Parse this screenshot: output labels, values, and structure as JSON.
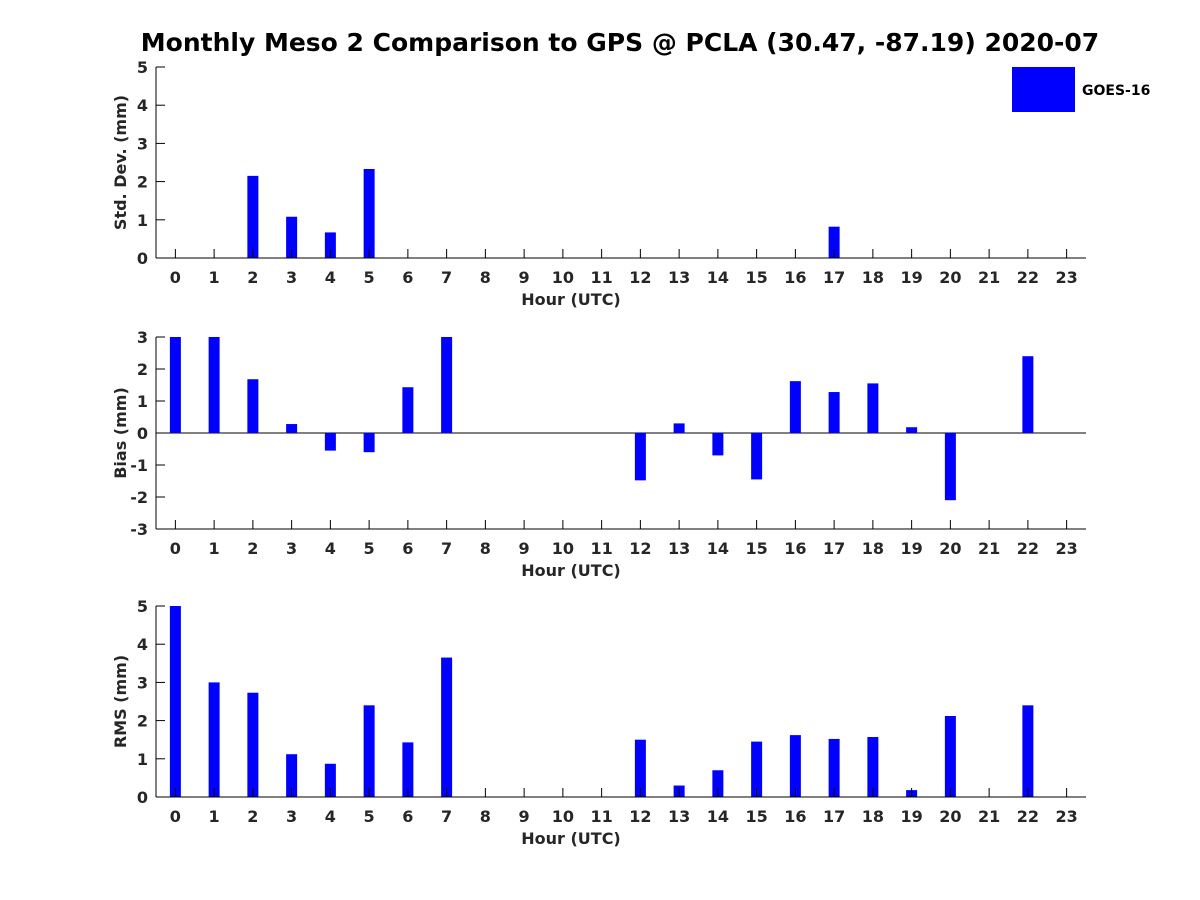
{
  "title": "Monthly Meso 2 Comparison to GPS @ PCLA (30.47, -87.19) 2020-07",
  "legend": {
    "label": "GOES-16",
    "color": "#0000ff",
    "position": "top-right"
  },
  "chart_data": [
    {
      "type": "bar",
      "name": "std-dev",
      "xlabel": "Hour (UTC)",
      "ylabel": "Std. Dev. (mm)",
      "categories": [
        "0",
        "1",
        "2",
        "3",
        "4",
        "5",
        "6",
        "7",
        "8",
        "9",
        "10",
        "11",
        "12",
        "13",
        "14",
        "15",
        "16",
        "17",
        "18",
        "19",
        "20",
        "21",
        "22",
        "23"
      ],
      "xlim": [
        -0.5,
        23.5
      ],
      "ylim": [
        0,
        5
      ],
      "yticks": [
        0,
        1,
        2,
        3,
        4,
        5
      ],
      "series": [
        {
          "name": "GOES-16",
          "values": [
            0,
            0,
            2.15,
            1.08,
            0.67,
            2.33,
            0,
            0,
            0,
            0,
            0,
            0,
            0,
            0,
            0,
            0,
            0,
            0.82,
            0,
            0,
            0,
            0,
            0,
            0
          ]
        }
      ]
    },
    {
      "type": "bar",
      "name": "bias",
      "xlabel": "Hour (UTC)",
      "ylabel": "Bias (mm)",
      "categories": [
        "0",
        "1",
        "2",
        "3",
        "4",
        "5",
        "6",
        "7",
        "8",
        "9",
        "10",
        "11",
        "12",
        "13",
        "14",
        "15",
        "16",
        "17",
        "18",
        "19",
        "20",
        "21",
        "22",
        "23"
      ],
      "xlim": [
        -0.5,
        23.5
      ],
      "ylim": [
        -3,
        3
      ],
      "yticks": [
        -3,
        -2,
        -1,
        0,
        1,
        2,
        3
      ],
      "zero_line": true,
      "series": [
        {
          "name": "GOES-16",
          "values": [
            3,
            3,
            1.68,
            0.28,
            -0.55,
            -0.6,
            1.43,
            3,
            0,
            0,
            0,
            0,
            -1.48,
            0.3,
            -0.7,
            -1.45,
            1.62,
            1.28,
            1.55,
            0.18,
            -2.1,
            0,
            2.4,
            0
          ]
        }
      ]
    },
    {
      "type": "bar",
      "name": "rms",
      "xlabel": "Hour (UTC)",
      "ylabel": "RMS (mm)",
      "categories": [
        "0",
        "1",
        "2",
        "3",
        "4",
        "5",
        "6",
        "7",
        "8",
        "9",
        "10",
        "11",
        "12",
        "13",
        "14",
        "15",
        "16",
        "17",
        "18",
        "19",
        "20",
        "21",
        "22",
        "23"
      ],
      "xlim": [
        -0.5,
        23.5
      ],
      "ylim": [
        0,
        5
      ],
      "yticks": [
        0,
        1,
        2,
        3,
        4,
        5
      ],
      "series": [
        {
          "name": "GOES-16",
          "values": [
            5,
            3,
            2.73,
            1.12,
            0.87,
            2.4,
            1.43,
            3.65,
            0,
            0,
            0,
            0,
            1.5,
            0.3,
            0.7,
            1.45,
            1.62,
            1.52,
            1.57,
            0.18,
            2.12,
            0,
            2.4,
            0
          ]
        }
      ]
    }
  ]
}
